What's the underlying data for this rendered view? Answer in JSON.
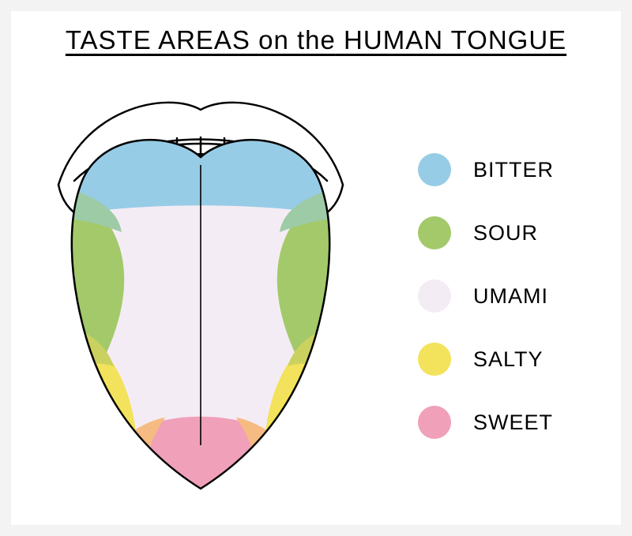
{
  "title": {
    "part1": "TASTE AREAS",
    "part2": "on the",
    "part3": "HUMAN TONGUE"
  },
  "diagram": {
    "type": "infographic",
    "outline_color": "#000000",
    "outline_width": 2.5,
    "background_color": "#ffffff",
    "areas": {
      "bitter": "#97cce6",
      "sour": "#a3c96a",
      "umami": "#f4ecf5",
      "salty": "#f3e25b",
      "sweet": "#f0a0b9",
      "overlap_sweet_salty": "#f5bb83",
      "overlap_salty_sour": "#cbd15f",
      "overlap_bitter_sour": "#9dcba6"
    }
  },
  "legend": [
    {
      "label": "BITTER",
      "color": "#97cce6"
    },
    {
      "label": "SOUR",
      "color": "#a3c96a"
    },
    {
      "label": "UMAMI",
      "color": "#f4ecf5"
    },
    {
      "label": "SALTY",
      "color": "#f3e25b"
    },
    {
      "label": "SWEET",
      "color": "#f0a0b9"
    }
  ],
  "legend_style": {
    "swatch_diameter": 42,
    "label_fontsize": 27,
    "row_gap": 38
  }
}
